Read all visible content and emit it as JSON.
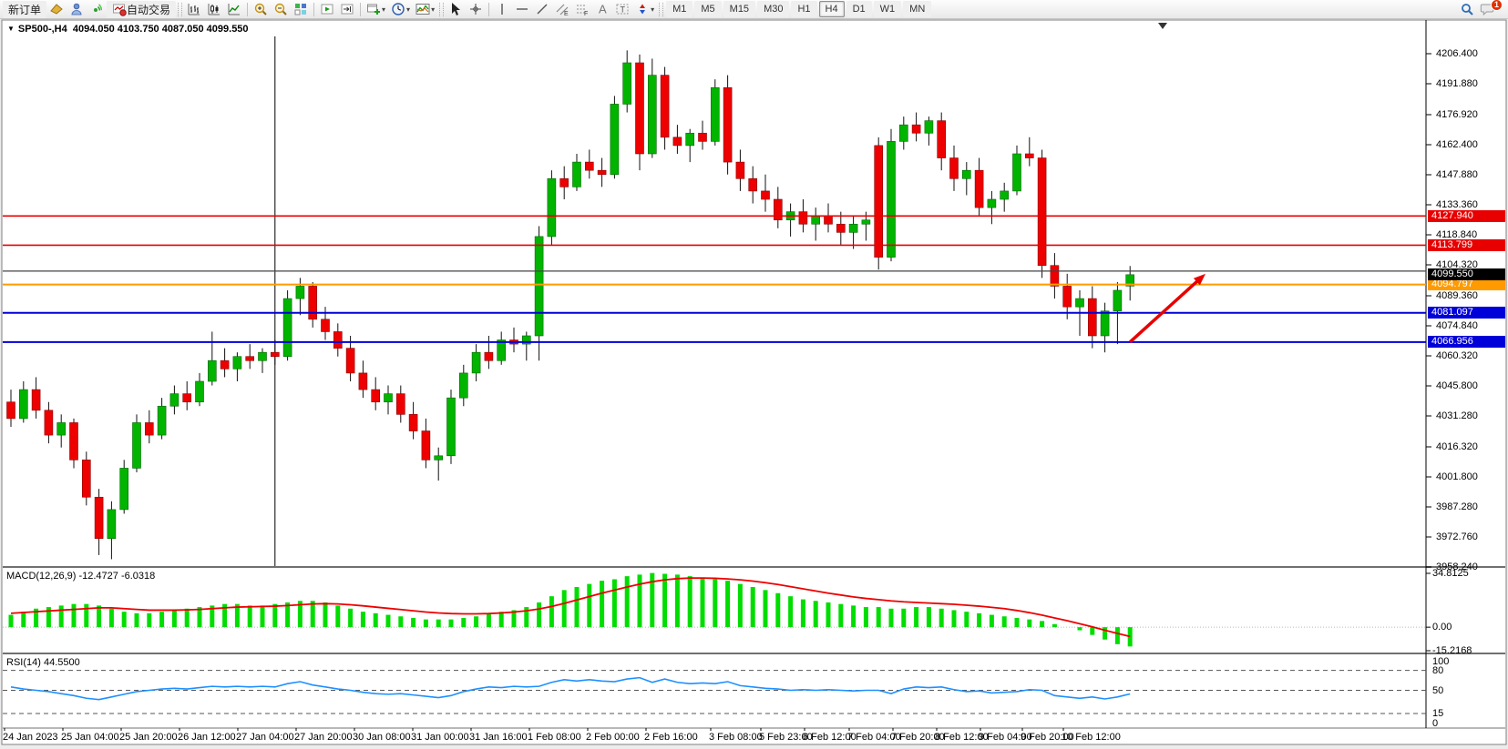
{
  "toolbar": {
    "new_order_label": "新订单",
    "autotrading_label": "自动交易",
    "timeframes": [
      "M1",
      "M5",
      "M15",
      "M30",
      "H1",
      "H4",
      "D1",
      "W1",
      "MN"
    ],
    "active_timeframe": "H4",
    "chat_badge": "1",
    "caret_glyph": "▾"
  },
  "chart": {
    "collapse_glyph": "▼",
    "title": "SP500-,H4",
    "ohlc_line": "4094.050 4103.750 4087.050 4099.550"
  },
  "price_axis": {
    "ticks": [
      "4206.400",
      "4191.880",
      "4176.920",
      "4162.400",
      "4147.880",
      "4133.360",
      "4118.840",
      "4104.320",
      "4089.360",
      "4074.840",
      "4060.320",
      "4045.800",
      "4031.280",
      "4016.320",
      "4001.800",
      "3987.280",
      "3972.760",
      "3958.240"
    ],
    "current_price": "4099.550",
    "current_price_bg": "#000000",
    "line_labels": [
      {
        "value": "4127.940",
        "color": "#e80000"
      },
      {
        "value": "4113.799",
        "color": "#e80000"
      },
      {
        "value": "4094.797",
        "color": "#ff9a00"
      },
      {
        "value": "4081.097",
        "color": "#0000d8"
      },
      {
        "value": "4066.956",
        "color": "#0000d8"
      }
    ]
  },
  "indicators": {
    "macd_label": "MACD(12,26,9) -12.4727 -6.0318",
    "macd_axis": [
      {
        "value": "34.8125",
        "v": 34.8125
      },
      {
        "value": "0.00",
        "v": 0
      },
      {
        "value": "-15.2168",
        "v": -15.2168
      }
    ],
    "rsi_label": "RSI(14) 44.5500",
    "rsi_axis": [
      {
        "value": "100",
        "v": 100
      },
      {
        "value": "80",
        "v": 80
      },
      {
        "value": "50",
        "v": 50
      },
      {
        "value": "15",
        "v": 15
      },
      {
        "value": "0",
        "v": 0
      }
    ]
  },
  "time_axis": {
    "labels": [
      "24 Jan 2023",
      "25 Jan 04:00",
      "25 Jan 20:00",
      "26 Jan 12:00",
      "27 Jan 04:00",
      "27 Jan 20:00",
      "30 Jan 08:00",
      "31 Jan 00:00",
      "31 Jan 16:00",
      "1 Feb 08:00",
      "2 Feb 00:00",
      "2 Feb 16:00",
      "3 Feb 08:00",
      "5 Feb 23:00",
      "6 Feb 12:00",
      "7 Feb 04:00",
      "7 Feb 20:00",
      "8 Feb 12:00",
      "9 Feb 04:00",
      "9 Feb 20:00",
      "10 Feb 12:00"
    ]
  },
  "chart_data": {
    "type": "candlestick",
    "symbol": "SP500-",
    "timeframe": "H4",
    "ylim": [
      3959,
      4215
    ],
    "last_ohlc": {
      "open": 4094.05,
      "high": 4103.75,
      "low": 4087.05,
      "close": 4099.55
    },
    "bull_color": "#00b400",
    "bear_color": "#ee0000",
    "candles": [
      [
        4038,
        4044,
        4026,
        4030
      ],
      [
        4030,
        4048,
        4028,
        4044
      ],
      [
        4044,
        4050,
        4030,
        4034
      ],
      [
        4034,
        4038,
        4018,
        4022
      ],
      [
        4022,
        4032,
        4016,
        4028
      ],
      [
        4028,
        4030,
        4006,
        4010
      ],
      [
        4010,
        4014,
        3988,
        3992
      ],
      [
        3992,
        3996,
        3964,
        3972
      ],
      [
        3972,
        3990,
        3962,
        3986
      ],
      [
        3986,
        4010,
        3984,
        4006
      ],
      [
        4006,
        4032,
        4004,
        4028
      ],
      [
        4028,
        4034,
        4018,
        4022
      ],
      [
        4022,
        4040,
        4020,
        4036
      ],
      [
        4036,
        4046,
        4032,
        4042
      ],
      [
        4042,
        4048,
        4034,
        4038
      ],
      [
        4038,
        4052,
        4036,
        4048
      ],
      [
        4048,
        4072,
        4046,
        4058
      ],
      [
        4058,
        4064,
        4050,
        4054
      ],
      [
        4054,
        4062,
        4048,
        4060
      ],
      [
        4060,
        4066,
        4054,
        4058
      ],
      [
        4058,
        4064,
        4052,
        4062
      ],
      [
        4062,
        4068,
        4056,
        4060
      ],
      [
        4060,
        4092,
        4058,
        4088
      ],
      [
        4088,
        4098,
        4080,
        4094
      ],
      [
        4094,
        4096,
        4074,
        4078
      ],
      [
        4078,
        4084,
        4068,
        4072
      ],
      [
        4072,
        4076,
        4060,
        4064
      ],
      [
        4064,
        4070,
        4048,
        4052
      ],
      [
        4052,
        4058,
        4040,
        4044
      ],
      [
        4044,
        4050,
        4034,
        4038
      ],
      [
        4038,
        4046,
        4032,
        4042
      ],
      [
        4042,
        4046,
        4028,
        4032
      ],
      [
        4032,
        4038,
        4020,
        4024
      ],
      [
        4024,
        4030,
        4006,
        4010
      ],
      [
        4010,
        4016,
        4000,
        4012
      ],
      [
        4012,
        4044,
        4008,
        4040
      ],
      [
        4040,
        4056,
        4036,
        4052
      ],
      [
        4052,
        4066,
        4048,
        4062
      ],
      [
        4062,
        4070,
        4054,
        4058
      ],
      [
        4058,
        4072,
        4056,
        4068
      ],
      [
        4068,
        4074,
        4062,
        4066
      ],
      [
        4066,
        4072,
        4058,
        4070
      ],
      [
        4070,
        4123,
        4058,
        4118
      ],
      [
        4118,
        4150,
        4114,
        4146
      ],
      [
        4146,
        4152,
        4136,
        4142
      ],
      [
        4142,
        4158,
        4140,
        4154
      ],
      [
        4154,
        4160,
        4146,
        4150
      ],
      [
        4150,
        4156,
        4142,
        4148
      ],
      [
        4148,
        4186,
        4146,
        4182
      ],
      [
        4182,
        4208,
        4178,
        4202
      ],
      [
        4202,
        4206,
        4150,
        4158
      ],
      [
        4158,
        4204,
        4156,
        4196
      ],
      [
        4196,
        4200,
        4160,
        4166
      ],
      [
        4166,
        4172,
        4158,
        4162
      ],
      [
        4162,
        4170,
        4154,
        4168
      ],
      [
        4168,
        4174,
        4160,
        4164
      ],
      [
        4164,
        4194,
        4162,
        4190
      ],
      [
        4190,
        4196,
        4148,
        4154
      ],
      [
        4154,
        4160,
        4140,
        4146
      ],
      [
        4146,
        4152,
        4134,
        4140
      ],
      [
        4140,
        4148,
        4130,
        4136
      ],
      [
        4136,
        4142,
        4122,
        4126
      ],
      [
        4126,
        4134,
        4118,
        4130
      ],
      [
        4130,
        4136,
        4120,
        4124
      ],
      [
        4124,
        4132,
        4116,
        4128
      ],
      [
        4128,
        4134,
        4120,
        4124
      ],
      [
        4124,
        4130,
        4114,
        4120
      ],
      [
        4120,
        4128,
        4112,
        4124
      ],
      [
        4124,
        4130,
        4116,
        4126
      ],
      [
        4162,
        4166,
        4102,
        4108
      ],
      [
        4108,
        4170,
        4106,
        4164
      ],
      [
        4164,
        4176,
        4160,
        4172
      ],
      [
        4172,
        4178,
        4164,
        4168
      ],
      [
        4168,
        4176,
        4162,
        4174
      ],
      [
        4174,
        4178,
        4150,
        4156
      ],
      [
        4156,
        4162,
        4140,
        4146
      ],
      [
        4146,
        4154,
        4138,
        4150
      ],
      [
        4150,
        4156,
        4128,
        4132
      ],
      [
        4132,
        4140,
        4124,
        4136
      ],
      [
        4136,
        4144,
        4130,
        4140
      ],
      [
        4140,
        4162,
        4138,
        4158
      ],
      [
        4158,
        4166,
        4152,
        4156
      ],
      [
        4156,
        4160,
        4098,
        4104
      ],
      [
        4104,
        4110,
        4088,
        4094
      ],
      [
        4094,
        4100,
        4078,
        4084
      ],
      [
        4084,
        4092,
        4070,
        4088
      ],
      [
        4088,
        4094,
        4064,
        4070
      ],
      [
        4070,
        4086,
        4062,
        4082
      ],
      [
        4082,
        4096,
        4066,
        4092
      ],
      [
        4094.05,
        4103.75,
        4087.05,
        4099.55
      ]
    ],
    "levels": [
      {
        "price": 4127.94,
        "color": "#e80000",
        "width": 1.6
      },
      {
        "price": 4113.799,
        "color": "#e80000",
        "width": 1.6
      },
      {
        "price": 4101.3,
        "color": "#444444",
        "width": 1.2
      },
      {
        "price": 4094.797,
        "color": "#ff9a00",
        "width": 2
      },
      {
        "price": 4081.097,
        "color": "#0000d8",
        "width": 2
      },
      {
        "price": 4066.956,
        "color": "#0000d8",
        "width": 2
      }
    ],
    "macd": {
      "params": "12,26,9",
      "value": -12.4727,
      "signal_value": -6.0318,
      "range": [
        -15.2168,
        34.8125
      ],
      "histogram_color": "#00dd00",
      "signal_color": "#ee0000",
      "histogram": [
        8,
        10,
        12,
        13,
        14,
        15,
        15,
        14,
        12,
        10,
        9,
        9,
        10,
        11,
        12,
        13,
        14,
        15,
        15,
        14,
        14,
        15,
        16,
        17,
        17,
        16,
        14,
        12,
        10,
        9,
        8,
        7,
        6,
        5,
        5,
        5,
        6,
        7,
        9,
        10,
        11,
        13,
        16,
        20,
        24,
        26,
        28,
        30,
        31,
        33,
        34,
        35,
        34.5,
        34,
        33,
        32,
        31,
        30,
        28,
        26,
        24,
        22,
        20,
        18,
        17,
        16,
        15,
        14,
        13,
        13,
        12,
        12,
        13,
        13,
        12,
        11,
        10,
        9,
        8,
        7,
        6,
        5,
        4,
        2,
        0,
        -2,
        -5,
        -8,
        -11,
        -12.47
      ],
      "signal": [
        9,
        9.5,
        10,
        10.5,
        11,
        11.5,
        12,
        12.5,
        12.5,
        12,
        11.5,
        11,
        11,
        11,
        11.2,
        11.5,
        12,
        12.5,
        13,
        13.2,
        13.4,
        13.6,
        14,
        14.5,
        15,
        15.2,
        15,
        14.5,
        13.8,
        13,
        12.2,
        11.4,
        10.6,
        9.8,
        9.2,
        8.8,
        8.6,
        8.6,
        8.8,
        9.2,
        9.8,
        10.6,
        11.8,
        13.4,
        15.4,
        17.6,
        19.8,
        22,
        24,
        26,
        27.8,
        29.4,
        30.6,
        31.4,
        31.8,
        31.8,
        31.6,
        31.2,
        30.6,
        29.8,
        28.8,
        27.6,
        26.2,
        24.8,
        23.4,
        22,
        20.8,
        19.6,
        18.6,
        17.8,
        17,
        16.4,
        16,
        15.6,
        15.2,
        14.8,
        14.2,
        13.6,
        12.8,
        12,
        10.8,
        9.4,
        7.8,
        6,
        4.2,
        2.2,
        0.2,
        -2,
        -4,
        -6.03
      ]
    },
    "rsi": {
      "period": 14,
      "value": 44.55,
      "range": [
        0,
        100
      ],
      "levels": [
        80,
        50,
        15
      ],
      "line_color": "#1e90ff",
      "values": [
        55,
        52,
        50,
        48,
        45,
        42,
        38,
        36,
        40,
        44,
        48,
        50,
        52,
        53,
        52,
        54,
        56,
        55,
        56,
        55,
        56,
        55,
        60,
        63,
        58,
        55,
        52,
        50,
        47,
        45,
        44,
        45,
        43,
        41,
        39,
        42,
        48,
        52,
        55,
        54,
        56,
        55,
        56,
        62,
        66,
        64,
        66,
        64,
        63,
        67,
        69,
        62,
        67,
        62,
        60,
        61,
        60,
        63,
        57,
        55,
        53,
        52,
        50,
        51,
        50,
        51,
        50,
        49,
        50,
        50,
        45,
        52,
        55,
        54,
        55,
        51,
        48,
        49,
        46,
        47,
        48,
        51,
        50,
        42,
        40,
        38,
        40,
        37,
        40,
        44.55
      ]
    },
    "annotations": [
      {
        "type": "arrow",
        "color": "#e80000",
        "from_bar": 89,
        "from_price": 4067,
        "to_bar": 95,
        "to_price": 4100
      },
      {
        "type": "vertical-line",
        "color": "#000000",
        "bar": 21
      }
    ]
  }
}
